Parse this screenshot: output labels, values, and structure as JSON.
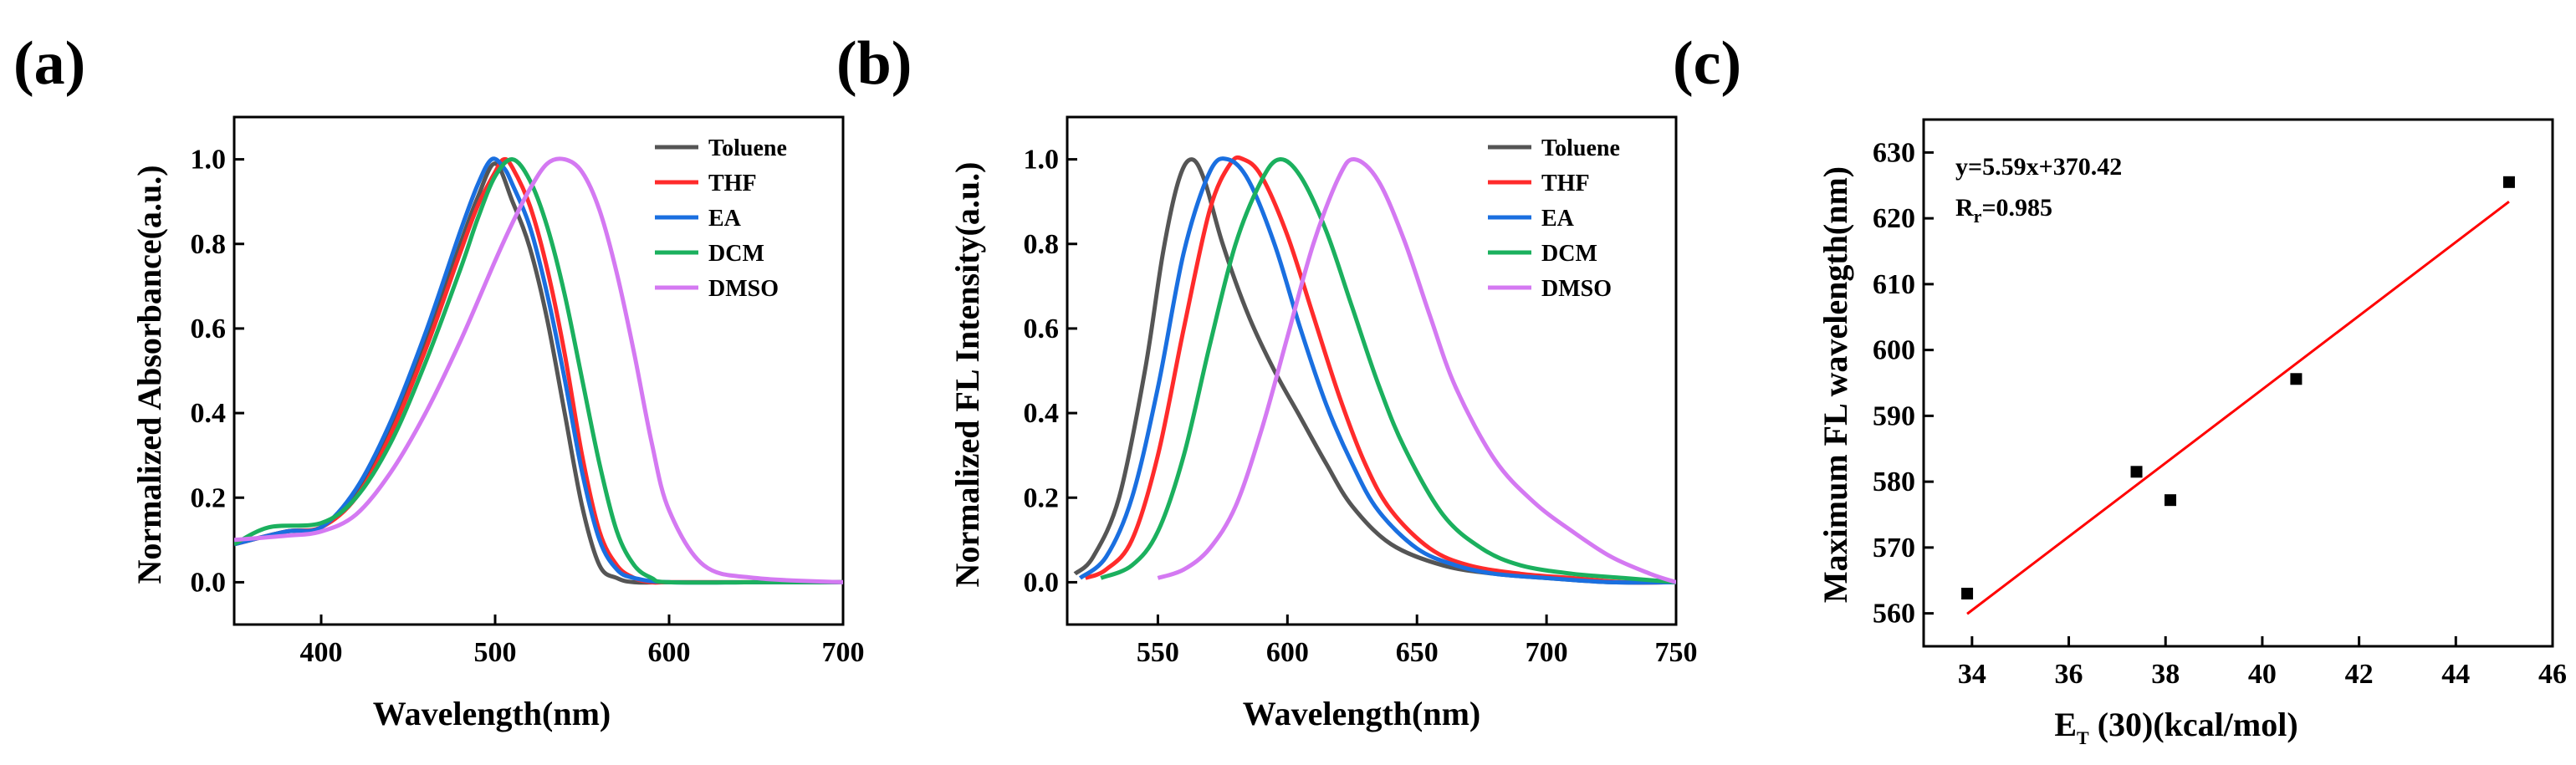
{
  "chart_data": [
    {
      "type": "line",
      "panel_label": "(a)",
      "title": "",
      "xlabel": "Wavelength(nm)",
      "ylabel": "Normalized Absorbance(a.u.)",
      "xlim": [
        350,
        700
      ],
      "ylim": [
        -0.1,
        1.1
      ],
      "xticks": [
        400,
        500,
        600,
        700
      ],
      "yticks": [
        0.0,
        0.2,
        0.4,
        0.6,
        0.8,
        1.0
      ],
      "xtick_labels": [
        "400",
        "500",
        "600",
        "700"
      ],
      "ytick_labels": [
        "0.0",
        "0.2",
        "0.4",
        "0.6",
        "0.8",
        "1.0"
      ],
      "legend_position": "top-right",
      "series": [
        {
          "name": "Toluene",
          "color": "#555555",
          "x": [
            350,
            380,
            400,
            420,
            440,
            460,
            480,
            490,
            500,
            510,
            520,
            530,
            540,
            550,
            560,
            570,
            580,
            600,
            650,
            700
          ],
          "values": [
            0.09,
            0.12,
            0.13,
            0.21,
            0.37,
            0.57,
            0.8,
            0.91,
            0.99,
            0.9,
            0.79,
            0.62,
            0.4,
            0.18,
            0.04,
            0.01,
            0.0,
            0.0,
            0.0,
            0.0
          ]
        },
        {
          "name": "THF",
          "color": "#ff2b2b",
          "x": [
            350,
            380,
            400,
            420,
            440,
            460,
            480,
            490,
            500,
            505,
            510,
            520,
            530,
            540,
            550,
            560,
            570,
            580,
            590,
            600,
            650,
            700
          ],
          "values": [
            0.09,
            0.12,
            0.13,
            0.2,
            0.35,
            0.55,
            0.78,
            0.89,
            0.97,
            1.0,
            0.98,
            0.89,
            0.74,
            0.54,
            0.3,
            0.12,
            0.04,
            0.01,
            0.0,
            0.0,
            0.0,
            0.0
          ]
        },
        {
          "name": "EA",
          "color": "#1a6fe0",
          "x": [
            350,
            380,
            400,
            420,
            440,
            460,
            480,
            490,
            498,
            505,
            510,
            520,
            530,
            540,
            550,
            560,
            570,
            580,
            600,
            650,
            700
          ],
          "values": [
            0.09,
            0.12,
            0.13,
            0.22,
            0.38,
            0.59,
            0.83,
            0.94,
            1.0,
            0.98,
            0.94,
            0.84,
            0.68,
            0.48,
            0.26,
            0.1,
            0.03,
            0.01,
            0.0,
            0.0,
            0.0
          ]
        },
        {
          "name": "DCM",
          "color": "#1bb05e",
          "x": [
            350,
            370,
            400,
            420,
            440,
            460,
            480,
            490,
            500,
            510,
            520,
            530,
            540,
            550,
            560,
            570,
            580,
            590,
            600,
            650,
            700
          ],
          "values": [
            0.09,
            0.13,
            0.14,
            0.2,
            0.33,
            0.52,
            0.74,
            0.86,
            0.96,
            1.0,
            0.95,
            0.84,
            0.68,
            0.48,
            0.28,
            0.12,
            0.04,
            0.01,
            0.0,
            0.0,
            0.0
          ]
        },
        {
          "name": "DMSO",
          "color": "#d479f2",
          "x": [
            350,
            380,
            400,
            420,
            440,
            460,
            480,
            500,
            510,
            520,
            530,
            540,
            550,
            560,
            570,
            580,
            590,
            600,
            620,
            650,
            700
          ],
          "values": [
            0.1,
            0.11,
            0.12,
            0.16,
            0.26,
            0.4,
            0.57,
            0.76,
            0.85,
            0.93,
            0.99,
            1.0,
            0.97,
            0.88,
            0.73,
            0.54,
            0.33,
            0.17,
            0.04,
            0.01,
            0.0
          ]
        }
      ]
    },
    {
      "type": "line",
      "panel_label": "(b)",
      "title": "",
      "xlabel": "Wavelength(nm)",
      "ylabel": "Normalized FL Intensity(a.u.)",
      "xlim": [
        515,
        750
      ],
      "ylim": [
        -0.1,
        1.1
      ],
      "xticks": [
        550,
        600,
        650,
        700,
        750
      ],
      "yticks": [
        0.0,
        0.2,
        0.4,
        0.6,
        0.8,
        1.0
      ],
      "xtick_labels": [
        "550",
        "600",
        "650",
        "700",
        "750"
      ],
      "ytick_labels": [
        "0.0",
        "0.2",
        "0.4",
        "0.6",
        "0.8",
        "1.0"
      ],
      "legend_position": "top-right",
      "series": [
        {
          "name": "Toluene",
          "color": "#555555",
          "x": [
            518,
            525,
            535,
            545,
            552,
            558,
            563,
            568,
            575,
            585,
            595,
            605,
            615,
            625,
            640,
            660,
            680,
            700,
            725,
            750
          ],
          "values": [
            0.02,
            0.06,
            0.2,
            0.5,
            0.78,
            0.95,
            1.0,
            0.95,
            0.8,
            0.63,
            0.5,
            0.39,
            0.28,
            0.18,
            0.09,
            0.04,
            0.02,
            0.01,
            0.0,
            0.0
          ]
        },
        {
          "name": "THF",
          "color": "#ff2b2b",
          "x": [
            522,
            530,
            540,
            550,
            560,
            570,
            578,
            583,
            590,
            600,
            610,
            620,
            630,
            640,
            655,
            670,
            690,
            710,
            730,
            750
          ],
          "values": [
            0.01,
            0.03,
            0.1,
            0.3,
            0.6,
            0.88,
            0.99,
            1.0,
            0.96,
            0.82,
            0.63,
            0.44,
            0.28,
            0.17,
            0.08,
            0.04,
            0.02,
            0.01,
            0.0,
            0.0
          ]
        },
        {
          "name": "EA",
          "color": "#1a6fe0",
          "x": [
            520,
            530,
            540,
            550,
            560,
            570,
            577,
            585,
            595,
            605,
            615,
            625,
            635,
            650,
            665,
            680,
            700,
            725,
            750
          ],
          "values": [
            0.01,
            0.06,
            0.2,
            0.46,
            0.78,
            0.97,
            1.0,
            0.95,
            0.8,
            0.6,
            0.42,
            0.28,
            0.17,
            0.08,
            0.04,
            0.02,
            0.01,
            0.0,
            0.0
          ]
        },
        {
          "name": "DCM",
          "color": "#1bb05e",
          "x": [
            528,
            540,
            550,
            560,
            570,
            580,
            590,
            597,
            605,
            615,
            625,
            635,
            645,
            660,
            675,
            690,
            710,
            730,
            750
          ],
          "values": [
            0.01,
            0.04,
            0.12,
            0.3,
            0.56,
            0.8,
            0.95,
            1.0,
            0.96,
            0.83,
            0.65,
            0.47,
            0.32,
            0.16,
            0.08,
            0.04,
            0.02,
            0.01,
            0.0
          ]
        },
        {
          "name": "DMSO",
          "color": "#d479f2",
          "x": [
            550,
            560,
            570,
            580,
            590,
            600,
            610,
            620,
            626,
            635,
            645,
            655,
            665,
            680,
            695,
            710,
            725,
            740,
            750
          ],
          "values": [
            0.01,
            0.03,
            0.08,
            0.18,
            0.36,
            0.58,
            0.8,
            0.96,
            1.0,
            0.95,
            0.81,
            0.63,
            0.46,
            0.29,
            0.19,
            0.12,
            0.06,
            0.02,
            0.0
          ]
        }
      ]
    },
    {
      "type": "scatter",
      "panel_label": "(c)",
      "title": "",
      "xlabel_main": "E",
      "xlabel_sub": "T",
      "xlabel_rest": " (30)(kcal/mol)",
      "ylabel": "Maximum FL wavelength(nm)",
      "xlim": [
        33,
        46
      ],
      "ylim": [
        555,
        635
      ],
      "xticks": [
        34,
        36,
        38,
        40,
        42,
        44,
        46
      ],
      "yticks": [
        560,
        570,
        580,
        590,
        600,
        610,
        620,
        630
      ],
      "xtick_labels": [
        "34",
        "36",
        "38",
        "40",
        "42",
        "44",
        "46"
      ],
      "ytick_labels": [
        "560",
        "570",
        "580",
        "590",
        "600",
        "610",
        "620",
        "630"
      ],
      "points": {
        "x": [
          33.9,
          37.4,
          38.1,
          40.7,
          45.1
        ],
        "y": [
          563,
          581.5,
          577.2,
          595.6,
          625.5
        ]
      },
      "fit": {
        "slope": 5.59,
        "intercept": 370.42,
        "x_range": [
          33.9,
          45.1
        ],
        "color": "#ff0000"
      },
      "equation": "y=5.59x+370.42",
      "r_label_main": "R",
      "r_label_sub": "r",
      "r_label_value": "=0.985"
    }
  ]
}
